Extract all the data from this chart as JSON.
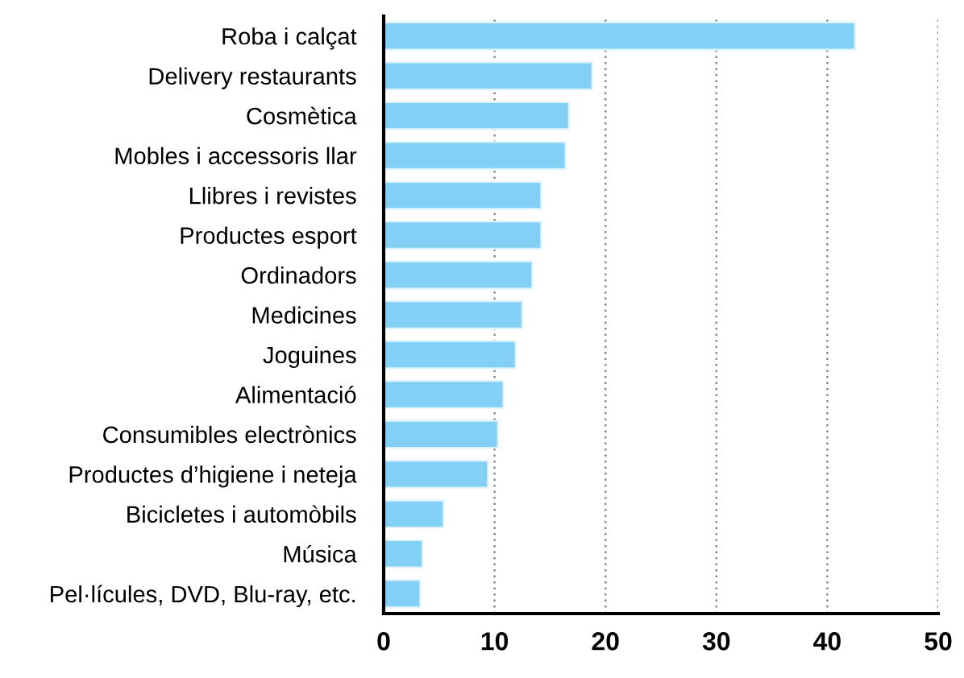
{
  "chart_data": {
    "type": "bar",
    "orientation": "horizontal",
    "categories": [
      "Roba i calçat",
      "Delivery restaurants",
      "Cosmètica",
      "Mobles i accessoris llar",
      "Llibres i revistes",
      "Productes esport",
      "Ordinadors",
      "Medicines",
      "Joguines",
      "Alimentació",
      "Consumibles electrònics",
      "Productes d’higiene i neteja",
      "Bicicletes i automòbils",
      "Música",
      "Pel·lícules, DVD, Blu-ray, etc."
    ],
    "values": [
      42.5,
      18.8,
      16.7,
      16.4,
      14.2,
      14.2,
      13.4,
      12.5,
      11.9,
      10.8,
      10.3,
      9.4,
      5.4,
      3.5,
      3.3
    ],
    "color": "#82d0f5",
    "xlim": [
      0,
      50
    ],
    "xticks": [
      0,
      10,
      20,
      30,
      40,
      50
    ],
    "grid": "x"
  }
}
